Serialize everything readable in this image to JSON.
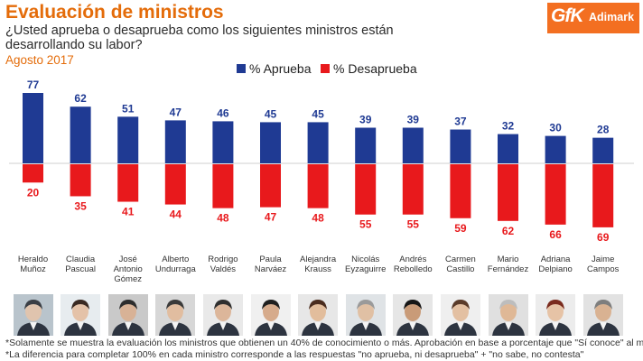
{
  "header": {
    "title": "Evaluación de ministros",
    "question": "¿Usted aprueba o desaprueba como los siguientes ministros están desarrollando su labor?",
    "date": "Agosto 2017"
  },
  "logo": {
    "brand": "GfK",
    "partner": "Adimark"
  },
  "colors": {
    "approve": "#1f3a93",
    "disapprove": "#e8191c",
    "accent": "#e46c0a",
    "approve_label": "#1f3a93",
    "disapprove_label": "#e8191c"
  },
  "chart_data": {
    "type": "bar",
    "title": "Evaluación de ministros",
    "categories": [
      "Heraldo Muñoz",
      "Claudia Pascual",
      "José Antonio Gómez",
      "Alberto Undurraga",
      "Rodrigo Valdés",
      "Paula Narváez",
      "Alejandra Krauss",
      "Nicolás Eyzaguirre",
      "Andrés Rebolledo",
      "Carmen Castillo",
      "Mario Fernández",
      "Adriana Delpiano",
      "Jaime Campos"
    ],
    "category_lines": [
      [
        "Heraldo",
        "Muñoz"
      ],
      [
        "Claudia",
        "Pascual"
      ],
      [
        "José",
        "Antonio",
        "Gómez"
      ],
      [
        "Alberto",
        "Undurraga"
      ],
      [
        "Rodrigo",
        "Valdés"
      ],
      [
        "Paula",
        "Narváez"
      ],
      [
        "Alejandra",
        "Krauss"
      ],
      [
        "Nicolás",
        "Eyzaguirre"
      ],
      [
        "Andrés",
        "Rebolledo"
      ],
      [
        "Carmen",
        "Castillo"
      ],
      [
        "Mario",
        "Fernández"
      ],
      [
        "Adriana",
        "Delpiano"
      ],
      [
        "Jaime",
        "Campos"
      ]
    ],
    "series": [
      {
        "name": "% Aprueba",
        "values": [
          77,
          62,
          51,
          47,
          46,
          45,
          45,
          39,
          39,
          37,
          32,
          30,
          28
        ]
      },
      {
        "name": "% Desaprueba",
        "values": [
          20,
          35,
          41,
          44,
          48,
          47,
          48,
          55,
          55,
          59,
          62,
          66,
          69
        ]
      }
    ],
    "ylim": [
      -69,
      77
    ],
    "legend_position": "top-center",
    "grid": false
  },
  "footnotes": [
    "*Solamente se muestra la evaluación los ministros que obtienen un 40% de conocimiento o más. Aprobación en base a porcentaje que \"Sí conoce\" al ministro",
    "*La diferencia para completar 100% en cada ministro corresponde a las respuestas \"no aprueba, ni desaprueba\" + \"no sabe, no contesta\""
  ]
}
